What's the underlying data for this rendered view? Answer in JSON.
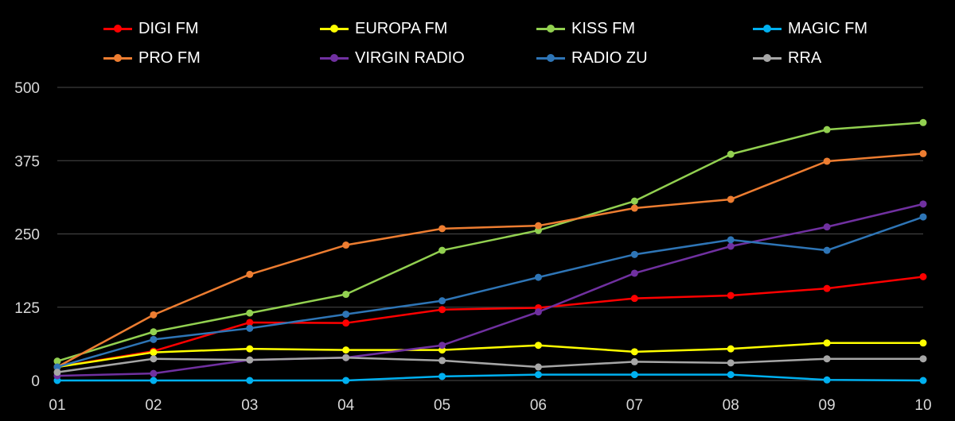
{
  "chart_data": {
    "type": "line",
    "title": "",
    "xlabel": "",
    "ylabel": "",
    "categories": [
      "01",
      "02",
      "03",
      "04",
      "05",
      "06",
      "07",
      "08",
      "09",
      "10"
    ],
    "y_ticks": [
      "0",
      "125",
      "250",
      "375",
      "500"
    ],
    "ylim": [
      0,
      500
    ],
    "grid": true,
    "legend_position": "top",
    "series": [
      {
        "name": "DIGI FM",
        "color": "#ff0000",
        "values": [
          23,
          50,
          99,
          98,
          121,
          124,
          140,
          145,
          157,
          177
        ]
      },
      {
        "name": "EUROPA FM",
        "color": "#ffff00",
        "values": [
          23,
          48,
          54,
          52,
          52,
          60,
          49,
          54,
          64,
          64
        ]
      },
      {
        "name": "KISS FM",
        "color": "#92d050",
        "values": [
          33,
          83,
          115,
          147,
          222,
          256,
          306,
          386,
          428,
          440
        ]
      },
      {
        "name": "MAGIC FM",
        "color": "#00b0f0",
        "values": [
          0,
          0,
          0,
          0,
          7,
          10,
          10,
          10,
          1,
          0
        ]
      },
      {
        "name": "PRO FM",
        "color": "#ed7d31",
        "values": [
          23,
          112,
          181,
          231,
          259,
          264,
          294,
          309,
          374,
          387
        ]
      },
      {
        "name": "VIRGIN RADIO",
        "color": "#7030a0",
        "values": [
          8,
          12,
          35,
          39,
          60,
          117,
          183,
          229,
          262,
          301
        ]
      },
      {
        "name": "RADIO ZU",
        "color": "#2e75b6",
        "values": [
          23,
          70,
          89,
          113,
          136,
          176,
          215,
          240,
          222,
          279
        ]
      },
      {
        "name": "RRA",
        "color": "#a6a6a6",
        "values": [
          14,
          37,
          35,
          39,
          34,
          23,
          32,
          30,
          37,
          37
        ]
      }
    ]
  }
}
